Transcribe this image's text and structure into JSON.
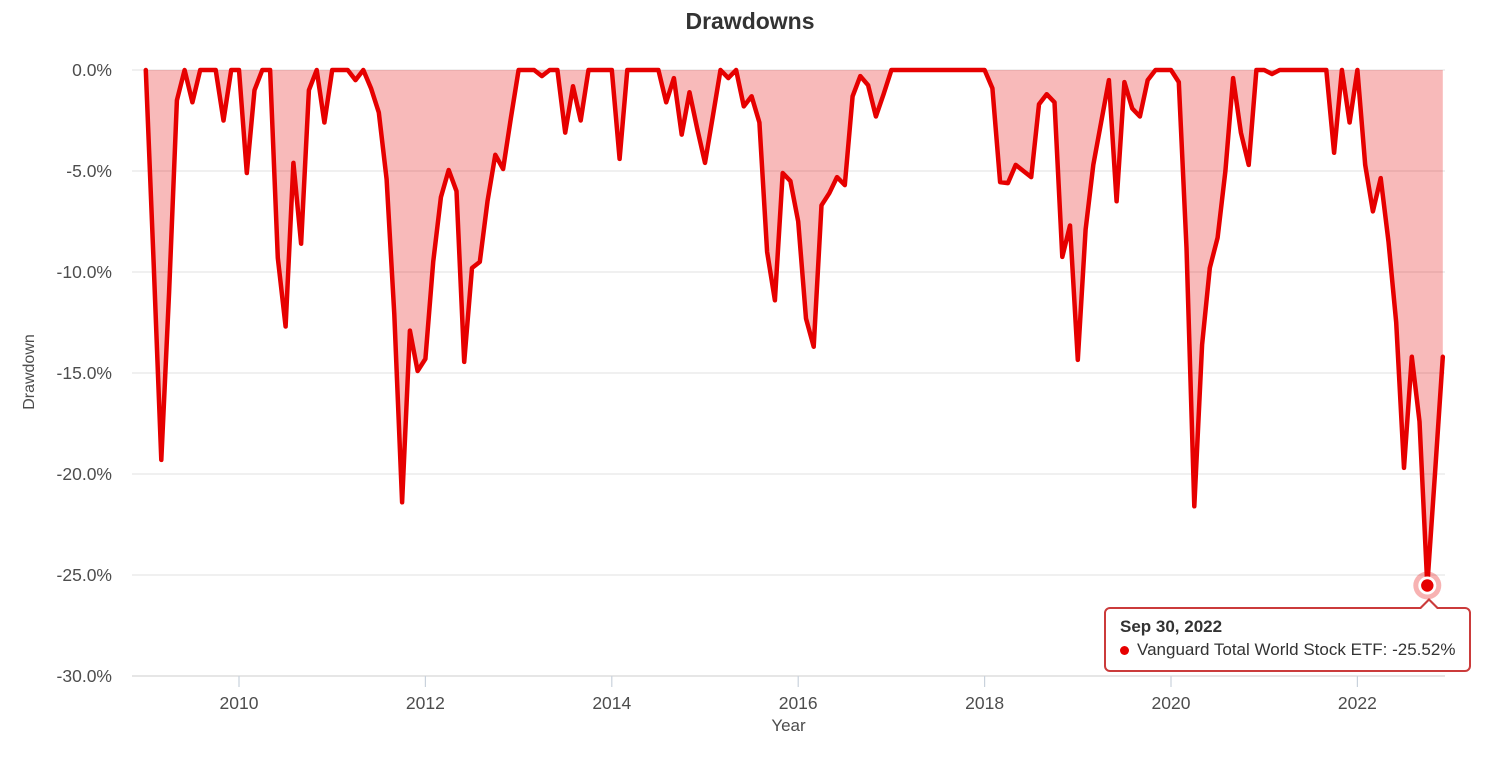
{
  "chart_data": {
    "type": "area",
    "title": "Drawdowns",
    "xlabel": "Year",
    "ylabel": "Drawdown",
    "grid": true,
    "legend": "none",
    "ylim": [
      -30,
      0
    ],
    "yticks": [
      {
        "v": 0,
        "label": "0.0%"
      },
      {
        "v": -5,
        "label": "-5.0%"
      },
      {
        "v": -10,
        "label": "-10.0%"
      },
      {
        "v": -15,
        "label": "-15.0%"
      },
      {
        "v": -20,
        "label": "-20.0%"
      },
      {
        "v": -25,
        "label": "-25.0%"
      },
      {
        "v": -30,
        "label": "-30.0%"
      }
    ],
    "xticks": [
      {
        "v": 2010,
        "label": "2010"
      },
      {
        "v": 2012,
        "label": "2012"
      },
      {
        "v": 2014,
        "label": "2014"
      },
      {
        "v": 2016,
        "label": "2016"
      },
      {
        "v": 2018,
        "label": "2018"
      },
      {
        "v": 2020,
        "label": "2020"
      },
      {
        "v": 2022,
        "label": "2022"
      }
    ],
    "highlight": {
      "point": "2022-09",
      "value": -25.52
    },
    "series": [
      {
        "name": "Vanguard Total World Stock ETF",
        "color": "#e60000",
        "fill": "rgba(230,0,0,0.27)",
        "points": [
          [
            "2008-12",
            0
          ],
          [
            "2009-01",
            -9.5
          ],
          [
            "2009-02",
            -19.3
          ],
          [
            "2009-03",
            -11
          ],
          [
            "2009-04",
            -1.5
          ],
          [
            "2009-05",
            0
          ],
          [
            "2009-06",
            -1.6
          ],
          [
            "2009-07",
            0
          ],
          [
            "2009-08",
            0
          ],
          [
            "2009-09",
            0
          ],
          [
            "2009-10",
            -2.5
          ],
          [
            "2009-11",
            0
          ],
          [
            "2009-12",
            0
          ],
          [
            "2010-01",
            -5.1
          ],
          [
            "2010-02",
            -1
          ],
          [
            "2010-03",
            0
          ],
          [
            "2010-04",
            0
          ],
          [
            "2010-05",
            -9.3
          ],
          [
            "2010-06",
            -12.7
          ],
          [
            "2010-07",
            -4.6
          ],
          [
            "2010-08",
            -8.6
          ],
          [
            "2010-09",
            -1
          ],
          [
            "2010-10",
            0
          ],
          [
            "2010-11",
            -2.6
          ],
          [
            "2010-12",
            0
          ],
          [
            "2011-01",
            0
          ],
          [
            "2011-02",
            0
          ],
          [
            "2011-03",
            -0.5
          ],
          [
            "2011-04",
            0
          ],
          [
            "2011-05",
            -0.9
          ],
          [
            "2011-06",
            -2.1
          ],
          [
            "2011-07",
            -5.4
          ],
          [
            "2011-08",
            -12.1
          ],
          [
            "2011-09",
            -21.4
          ],
          [
            "2011-10",
            -12.9
          ],
          [
            "2011-11",
            -14.9
          ],
          [
            "2011-12",
            -14.3
          ],
          [
            "2012-01",
            -9.5
          ],
          [
            "2012-02",
            -6.3
          ],
          [
            "2012-03",
            -4.95
          ],
          [
            "2012-04",
            -6
          ],
          [
            "2012-05",
            -14.45
          ],
          [
            "2012-06",
            -9.8
          ],
          [
            "2012-07",
            -9.5
          ],
          [
            "2012-08",
            -6.5
          ],
          [
            "2012-09",
            -4.2
          ],
          [
            "2012-10",
            -4.9
          ],
          [
            "2012-11",
            -2.4
          ],
          [
            "2012-12",
            0
          ],
          [
            "2013-01",
            0
          ],
          [
            "2013-02",
            0
          ],
          [
            "2013-03",
            -0.3
          ],
          [
            "2013-04",
            0
          ],
          [
            "2013-05",
            0
          ],
          [
            "2013-06",
            -3.1
          ],
          [
            "2013-07",
            -0.8
          ],
          [
            "2013-08",
            -2.5
          ],
          [
            "2013-09",
            0
          ],
          [
            "2013-10",
            0
          ],
          [
            "2013-11",
            0
          ],
          [
            "2013-12",
            0
          ],
          [
            "2014-01",
            -4.4
          ],
          [
            "2014-02",
            0
          ],
          [
            "2014-03",
            0
          ],
          [
            "2014-04",
            0
          ],
          [
            "2014-05",
            0
          ],
          [
            "2014-06",
            0
          ],
          [
            "2014-07",
            -1.6
          ],
          [
            "2014-08",
            -0.4
          ],
          [
            "2014-09",
            -3.2
          ],
          [
            "2014-10",
            -1.1
          ],
          [
            "2014-11",
            -2.9
          ],
          [
            "2014-12",
            -4.6
          ],
          [
            "2015-01",
            -2.3
          ],
          [
            "2015-02",
            0
          ],
          [
            "2015-03",
            -0.4
          ],
          [
            "2015-04",
            0
          ],
          [
            "2015-05",
            -1.8
          ],
          [
            "2015-06",
            -1.3
          ],
          [
            "2015-07",
            -2.6
          ],
          [
            "2015-08",
            -9
          ],
          [
            "2015-09",
            -11.4
          ],
          [
            "2015-10",
            -5.1
          ],
          [
            "2015-11",
            -5.5
          ],
          [
            "2015-12",
            -7.5
          ],
          [
            "2016-01",
            -12.3
          ],
          [
            "2016-02",
            -13.7
          ],
          [
            "2016-03",
            -6.7
          ],
          [
            "2016-04",
            -6.1
          ],
          [
            "2016-05",
            -5.3
          ],
          [
            "2016-06",
            -5.7
          ],
          [
            "2016-07",
            -1.3
          ],
          [
            "2016-08",
            -0.3
          ],
          [
            "2016-09",
            -0.75
          ],
          [
            "2016-10",
            -2.3
          ],
          [
            "2016-11",
            -1.2
          ],
          [
            "2016-12",
            0
          ],
          [
            "2017-01",
            0
          ],
          [
            "2017-02",
            0
          ],
          [
            "2017-03",
            0
          ],
          [
            "2017-04",
            0
          ],
          [
            "2017-05",
            0
          ],
          [
            "2017-06",
            0
          ],
          [
            "2017-07",
            0
          ],
          [
            "2017-08",
            0
          ],
          [
            "2017-09",
            0
          ],
          [
            "2017-10",
            0
          ],
          [
            "2017-11",
            0
          ],
          [
            "2017-12",
            0
          ],
          [
            "2018-01",
            -0.9
          ],
          [
            "2018-02",
            -5.55
          ],
          [
            "2018-03",
            -5.6
          ],
          [
            "2018-04",
            -4.7
          ],
          [
            "2018-05",
            -5
          ],
          [
            "2018-06",
            -5.3
          ],
          [
            "2018-07",
            -1.7
          ],
          [
            "2018-08",
            -1.2
          ],
          [
            "2018-09",
            -1.6
          ],
          [
            "2018-10",
            -9.25
          ],
          [
            "2018-11",
            -7.7
          ],
          [
            "2018-12",
            -14.35
          ],
          [
            "2019-01",
            -7.9
          ],
          [
            "2019-02",
            -4.7
          ],
          [
            "2019-03",
            -2.6
          ],
          [
            "2019-04",
            -0.5
          ],
          [
            "2019-05",
            -6.5
          ],
          [
            "2019-06",
            -0.6
          ],
          [
            "2019-07",
            -1.9
          ],
          [
            "2019-08",
            -2.3
          ],
          [
            "2019-09",
            -0.5
          ],
          [
            "2019-10",
            0
          ],
          [
            "2019-11",
            0
          ],
          [
            "2019-12",
            0
          ],
          [
            "2020-01",
            -0.6
          ],
          [
            "2020-02",
            -8.8
          ],
          [
            "2020-03",
            -21.6
          ],
          [
            "2020-04",
            -13.6
          ],
          [
            "2020-05",
            -9.8
          ],
          [
            "2020-06",
            -8.3
          ],
          [
            "2020-07",
            -5
          ],
          [
            "2020-08",
            -0.4
          ],
          [
            "2020-09",
            -3.1
          ],
          [
            "2020-10",
            -4.7
          ],
          [
            "2020-11",
            0
          ],
          [
            "2020-12",
            0
          ],
          [
            "2021-01",
            -0.2
          ],
          [
            "2021-02",
            0
          ],
          [
            "2021-03",
            0
          ],
          [
            "2021-04",
            0
          ],
          [
            "2021-05",
            0
          ],
          [
            "2021-06",
            0
          ],
          [
            "2021-07",
            0
          ],
          [
            "2021-08",
            0
          ],
          [
            "2021-09",
            -4.1
          ],
          [
            "2021-10",
            0
          ],
          [
            "2021-11",
            -2.6
          ],
          [
            "2021-12",
            0
          ],
          [
            "2022-01",
            -4.7
          ],
          [
            "2022-02",
            -7
          ],
          [
            "2022-03",
            -5.35
          ],
          [
            "2022-04",
            -8.5
          ],
          [
            "2022-05",
            -12.5
          ],
          [
            "2022-06",
            -19.7
          ],
          [
            "2022-07",
            -14.2
          ],
          [
            "2022-08",
            -17.4
          ],
          [
            "2022-09",
            -25.52
          ],
          [
            "2022-10",
            -19.9
          ],
          [
            "2022-11",
            -14.2
          ]
        ]
      }
    ]
  },
  "tooltip": {
    "date": "Sep 30, 2022",
    "series_line": "Vanguard Total World Stock ETF: -25.52%"
  }
}
